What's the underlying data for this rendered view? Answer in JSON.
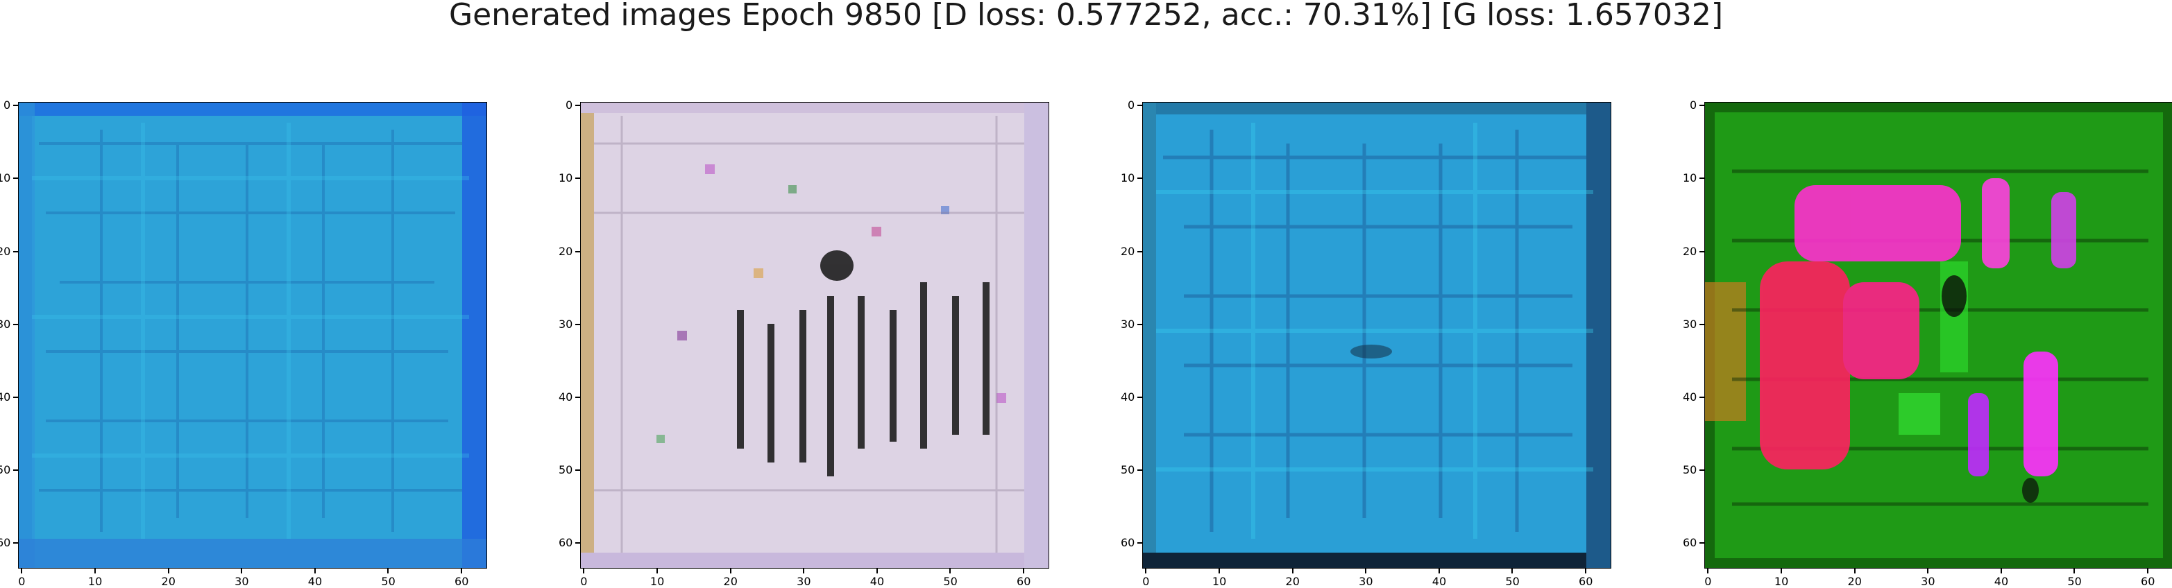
{
  "suptitle": "Generated images Epoch 9850 [D loss: 0.577252, acc.: 70.31%] [G loss: 1.657032]",
  "chart_data": [
    {
      "type": "image",
      "title": "",
      "description_colors": {
        "base": "#2a9fd6",
        "frame": "#1f6fe0",
        "line": "#1b5fa8",
        "highlight": "#3cc7ee"
      },
      "xlim": [
        -0.5,
        63.5
      ],
      "ylim": [
        63.5,
        -0.5
      ],
      "xticks": [
        0,
        10,
        20,
        30,
        40,
        50,
        60
      ],
      "yticks": [
        0,
        10,
        20,
        30,
        40,
        50,
        60
      ],
      "xtick_labels": [
        "0",
        "10",
        "20",
        "30",
        "40",
        "50",
        "60"
      ],
      "ytick_labels": [
        "0",
        "10",
        "20",
        "30",
        "40",
        "50",
        "60"
      ]
    },
    {
      "type": "image",
      "title": "",
      "description_colors": {
        "base": "#ded4e6",
        "frame": "#c9b48a",
        "line": "#141414",
        "highlight": "#b84cc4"
      },
      "xlim": [
        -0.5,
        63.5
      ],
      "ylim": [
        63.5,
        -0.5
      ],
      "xticks": [
        0,
        10,
        20,
        30,
        40,
        50,
        60
      ],
      "yticks": [
        0,
        10,
        20,
        30,
        40,
        50,
        60
      ],
      "xtick_labels": [
        "0",
        "10",
        "20",
        "30",
        "40",
        "50",
        "60"
      ],
      "ytick_labels": [
        "0",
        "10",
        "20",
        "30",
        "40",
        "50",
        "60"
      ]
    },
    {
      "type": "image",
      "title": "",
      "description_colors": {
        "base": "#2a9fd6",
        "frame": "#0f2438",
        "line": "#1a4f8c",
        "highlight": "#3ad0f0"
      },
      "xlim": [
        -0.5,
        63.5
      ],
      "ylim": [
        63.5,
        -0.5
      ],
      "xticks": [
        0,
        10,
        20,
        30,
        40,
        50,
        60
      ],
      "yticks": [
        0,
        10,
        20,
        30,
        40,
        50,
        60
      ],
      "xtick_labels": [
        "0",
        "10",
        "20",
        "30",
        "40",
        "50",
        "60"
      ],
      "ytick_labels": [
        "0",
        "10",
        "20",
        "30",
        "40",
        "50",
        "60"
      ]
    },
    {
      "type": "image",
      "title": "",
      "description_colors": {
        "base": "#1f9a16",
        "frame": "#0e4a08",
        "line": "#0a2a06",
        "highlight": "#ff2fd0",
        "accent": "#ff2060"
      },
      "xlim": [
        -0.5,
        63.5
      ],
      "ylim": [
        63.5,
        -0.5
      ],
      "xticks": [
        0,
        10,
        20,
        30,
        40,
        50,
        60
      ],
      "yticks": [
        0,
        10,
        20,
        30,
        40,
        50,
        60
      ],
      "xtick_labels": [
        "0",
        "10",
        "20",
        "30",
        "40",
        "50",
        "60"
      ],
      "ytick_labels": [
        "0",
        "10",
        "20",
        "30",
        "40",
        "50",
        "60"
      ]
    }
  ]
}
